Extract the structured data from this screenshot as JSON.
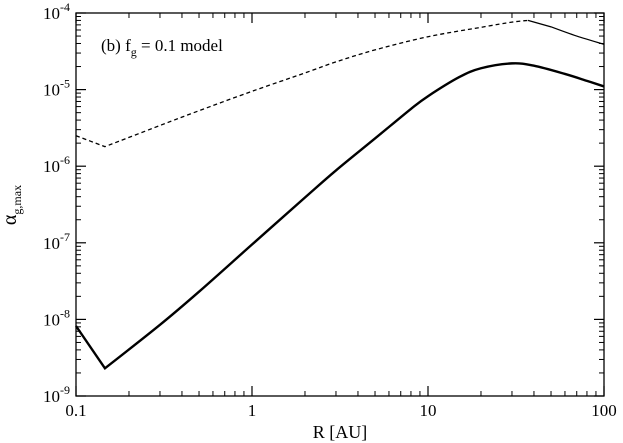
{
  "chart_data": {
    "type": "line",
    "title": "",
    "annotation": {
      "prefix": "(b) f",
      "sub": "g",
      "suffix": " = 0.1 model"
    },
    "xlabel": "R [AU]",
    "ylabel": {
      "main": "α",
      "sub": "g,max"
    },
    "xscale": "log",
    "yscale": "log",
    "xlim": [
      0.1,
      100
    ],
    "ylim": [
      1e-09,
      0.0001
    ],
    "legend": "none",
    "grid": false,
    "xticks": [
      {
        "value": 0.1,
        "label": "0.1"
      },
      {
        "value": 1,
        "label": "1"
      },
      {
        "value": 10,
        "label": "10"
      },
      {
        "value": 100,
        "label": "100"
      }
    ],
    "yticks": [
      {
        "value": 1e-09,
        "base": "10",
        "exp": "-9"
      },
      {
        "value": 1e-08,
        "base": "10",
        "exp": "-8"
      },
      {
        "value": 1e-07,
        "base": "10",
        "exp": "-7"
      },
      {
        "value": 1e-06,
        "base": "10",
        "exp": "-6"
      },
      {
        "value": 1e-05,
        "base": "10",
        "exp": "-5"
      },
      {
        "value": 0.0001,
        "base": "10",
        "exp": "-4"
      }
    ],
    "series": [
      {
        "style": "solid-thick",
        "points": [
          [
            0.1,
            8.2e-09
          ],
          [
            0.146,
            2.3e-09
          ],
          [
            0.3,
            8.5e-09
          ],
          [
            0.5,
            2.3e-08
          ],
          [
            1,
            9.5e-08
          ],
          [
            2,
            3.9e-07
          ],
          [
            3,
            8.8e-07
          ],
          [
            5,
            2.3e-06
          ],
          [
            8,
            5.6e-06
          ],
          [
            10,
            8.2e-06
          ],
          [
            15,
            1.45e-05
          ],
          [
            20,
            1.9e-05
          ],
          [
            30,
            2.2e-05
          ],
          [
            40,
            2.05e-05
          ],
          [
            60,
            1.6e-05
          ],
          [
            80,
            1.3e-05
          ],
          [
            100,
            1.1e-05
          ]
        ]
      },
      {
        "style": "dashed",
        "points": [
          [
            0.1,
            2.5e-06
          ],
          [
            0.146,
            1.8e-06
          ],
          [
            0.3,
            3.4e-06
          ],
          [
            0.5,
            5.3e-06
          ],
          [
            1,
            9.5e-06
          ],
          [
            2,
            1.65e-05
          ],
          [
            3,
            2.3e-05
          ],
          [
            5,
            3.3e-05
          ],
          [
            10,
            4.9e-05
          ],
          [
            20,
            6.5e-05
          ],
          [
            30,
            7.6e-05
          ],
          [
            37,
            8e-05
          ]
        ]
      },
      {
        "style": "solid-thin",
        "points": [
          [
            37,
            8e-05
          ],
          [
            50,
            6.6e-05
          ],
          [
            70,
            5e-05
          ],
          [
            100,
            3.9e-05
          ]
        ]
      }
    ]
  }
}
